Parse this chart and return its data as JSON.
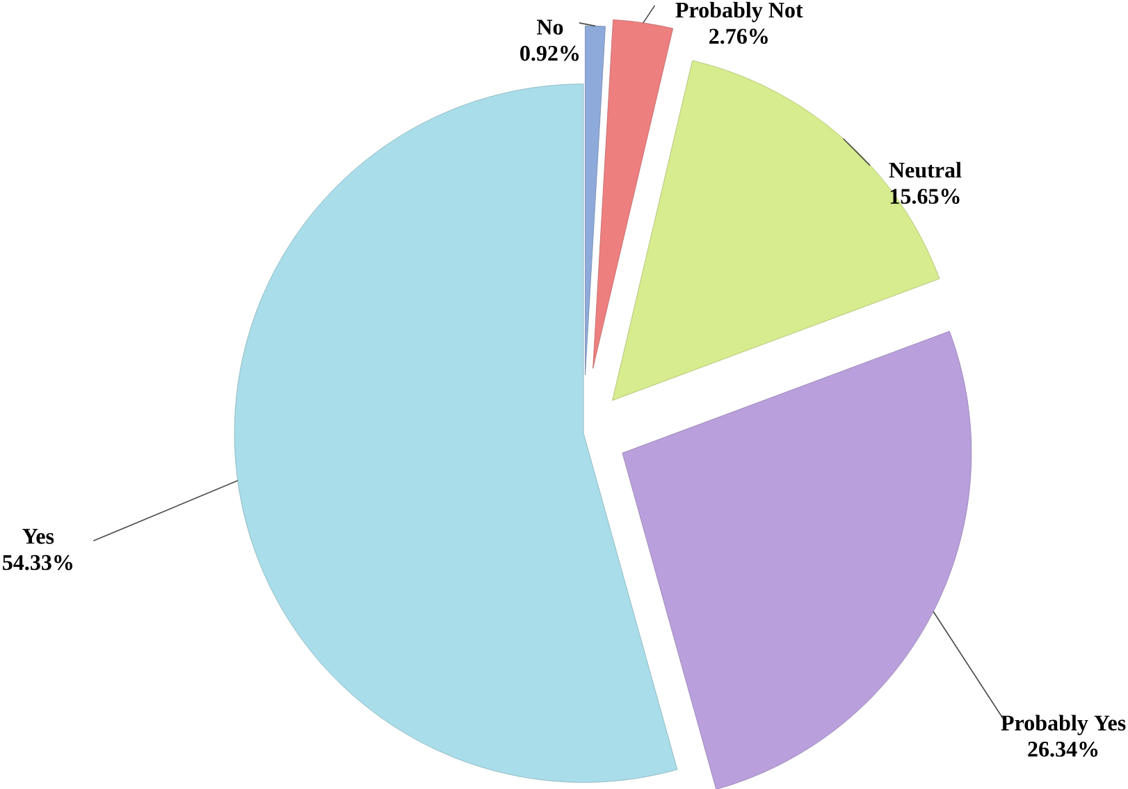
{
  "chart_data": {
    "type": "pie",
    "categories": [
      "No",
      "Probably Not",
      "Neutral",
      "Probably Yes",
      "Yes"
    ],
    "values": [
      0.92,
      2.76,
      15.65,
      26.34,
      54.33
    ],
    "value_labels": [
      "0.92%",
      "2.76%",
      "15.65%",
      "26.34%",
      "54.33%"
    ],
    "colors": [
      "#8eaadb",
      "#ee7f7f",
      "#d6ec8e",
      "#b9a0dc",
      "#a9dde9"
    ]
  }
}
